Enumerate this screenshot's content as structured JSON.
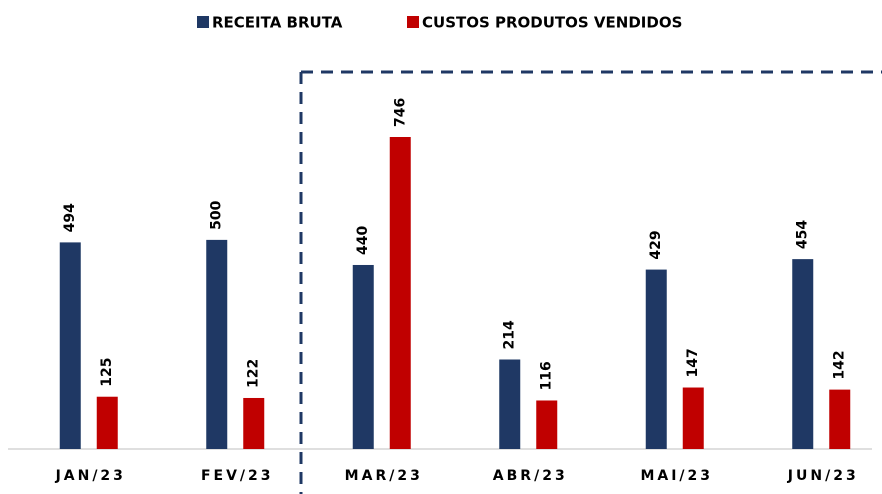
{
  "chart_data": {
    "type": "bar",
    "categories": [
      "JAN/23",
      "FEV/23",
      "MAR/23",
      "ABR/23",
      "MAI/23",
      "JUN/23"
    ],
    "series": [
      {
        "name": "RECEITA BRUTA",
        "color": "#1f3864",
        "values": [
          494,
          500,
          440,
          214,
          429,
          454
        ]
      },
      {
        "name": "CUSTOS PRODUTOS VENDIDOS",
        "color": "#c00000",
        "values": [
          125,
          122,
          746,
          116,
          147,
          142
        ]
      }
    ],
    "legend": "top"
  }
}
